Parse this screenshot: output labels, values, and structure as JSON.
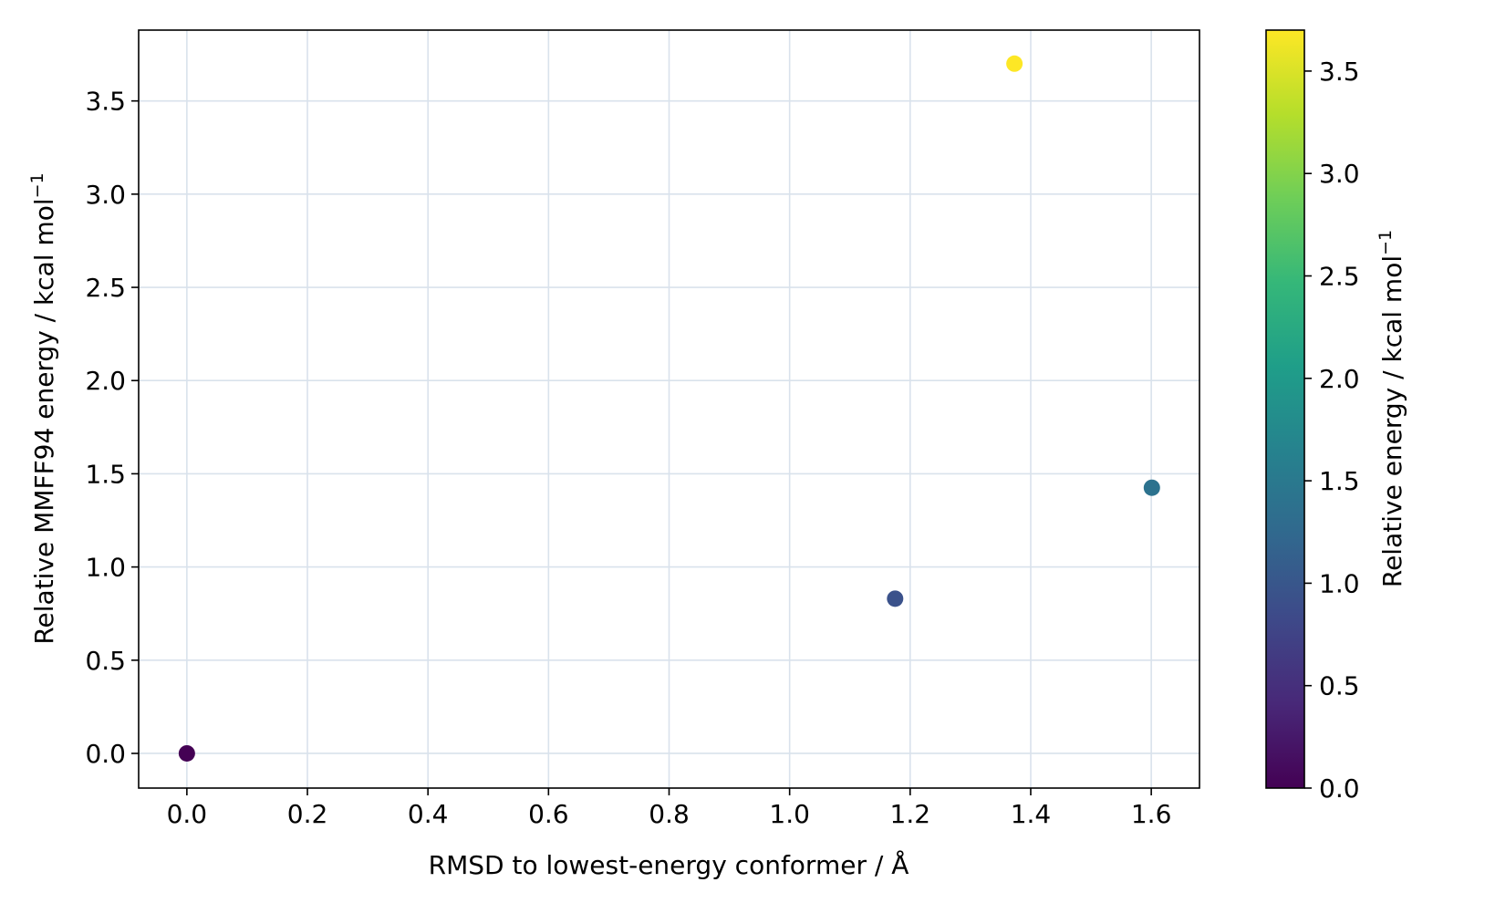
{
  "chart_data": {
    "type": "scatter",
    "title": "",
    "xlabel": "RMSD to lowest-energy conformer / Å",
    "ylabel": "Relative MMFF94 energy / kcal mol",
    "ylabel_superscript": "−1",
    "xlim": [
      -0.08,
      1.68
    ],
    "ylim": [
      -0.186,
      3.88
    ],
    "xticks": [
      0.0,
      0.2,
      0.4,
      0.6,
      0.8,
      1.0,
      1.2,
      1.4,
      1.6
    ],
    "yticks": [
      0.0,
      0.5,
      1.0,
      1.5,
      2.0,
      2.5,
      3.0,
      3.5
    ],
    "xtick_labels": [
      "0.0",
      "0.2",
      "0.4",
      "0.6",
      "0.8",
      "1.0",
      "1.2",
      "1.4",
      "1.6"
    ],
    "ytick_labels": [
      "0.0",
      "0.5",
      "1.0",
      "1.5",
      "2.0",
      "2.5",
      "3.0",
      "3.5"
    ],
    "grid": true,
    "grid_color": "#d9e2ec",
    "points": [
      {
        "x": 0.0,
        "y": 0.0,
        "color": "#440154"
      },
      {
        "x": 1.175,
        "y": 0.83,
        "color": "#3b528b"
      },
      {
        "x": 1.373,
        "y": 3.7,
        "color": "#fde725"
      },
      {
        "x": 1.601,
        "y": 1.425,
        "color": "#2c728e"
      }
    ],
    "colorbar": {
      "label": "Relative energy / kcal mol",
      "label_superscript": "−1",
      "colormap": "viridis",
      "range": [
        0.0,
        3.7
      ],
      "ticks": [
        0.0,
        0.5,
        1.0,
        1.5,
        2.0,
        2.5,
        3.0,
        3.5
      ],
      "tick_labels": [
        "0.0",
        "0.5",
        "1.0",
        "1.5",
        "2.0",
        "2.5",
        "3.0",
        "3.5"
      ],
      "stops": [
        "#440154",
        "#482878",
        "#3e4989",
        "#31688e",
        "#26828e",
        "#1f9e89",
        "#35b779",
        "#6ece58",
        "#b5de2b",
        "#fde725"
      ]
    }
  }
}
